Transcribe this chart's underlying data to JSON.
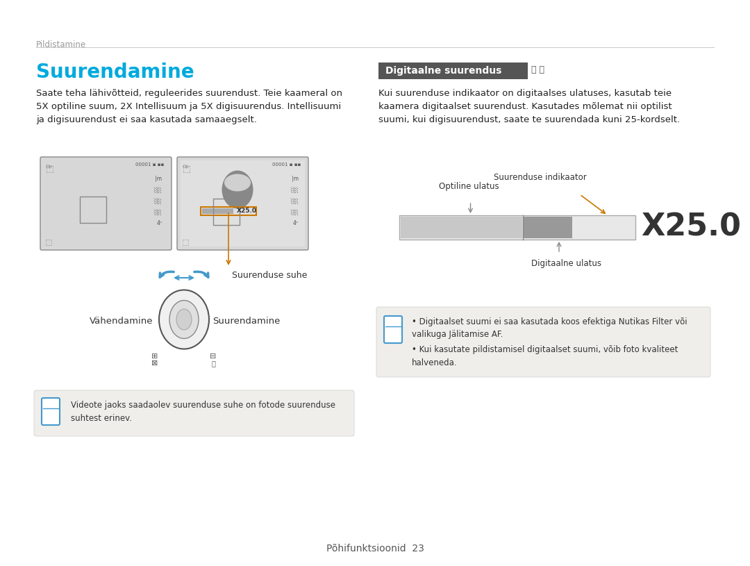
{
  "bg_color": "#ffffff",
  "page_header": "Pildistamine",
  "header_line_color": "#cccccc",
  "left_title": "Suurendamine",
  "left_title_color": "#00aadd",
  "left_body": "Saate teha lähivõtteid, reguleerides suurendust. Teie kaameral on\n5X optiline suum, 2X Intellisuum ja 5X digisuurendus. Intellisuumi\nja digisuurendust ei saa kasutada samaaegselt.",
  "left_body_color": "#222222",
  "right_title": "Digitaalne suurendus",
  "right_title_bg": "#444444",
  "right_title_color": "#ffffff",
  "right_body": "Kui suurenduse indikaator on digitaalses ulatuses, kasutab teie\nkaamera digitaalset suurendust. Kasutades mõlemat nii optilist\nsuumi, kui digisuurendust, saate te suurendada kuni 25-kordselt.",
  "right_body_color": "#222222",
  "note_bg": "#f0eeea",
  "note_border": "#dddddd",
  "left_note": "Videote jaoks saadaolev suurenduse suhe on fotode suurenduse\nsuhtest erinev.",
  "right_note_line1": "Digitaalset suumi ei saa kasutada koos efektiga Nutikas Filter või\nvalikuga Jälitamise AF.",
  "right_note_line2": "Kui kasutate pildistamisel digitaalset suumi, võib foto kvaliteet\nhalveneda.",
  "icon_color": "#4499cc",
  "footer_text": "Põhifunktsioonid  23",
  "footer_color": "#555555",
  "zoom_label_optiline": "Optiline ulatus",
  "zoom_label_suurenduse": "Suurenduse indikaator",
  "zoom_label_digitaalne": "Digitaalne ulatus",
  "zoom_ratio_label": "Suurenduse suhe",
  "zoom_vahe": "Vähendamine",
  "zoom_suur": "Suurendamine",
  "arrow_color": "#cc7700"
}
